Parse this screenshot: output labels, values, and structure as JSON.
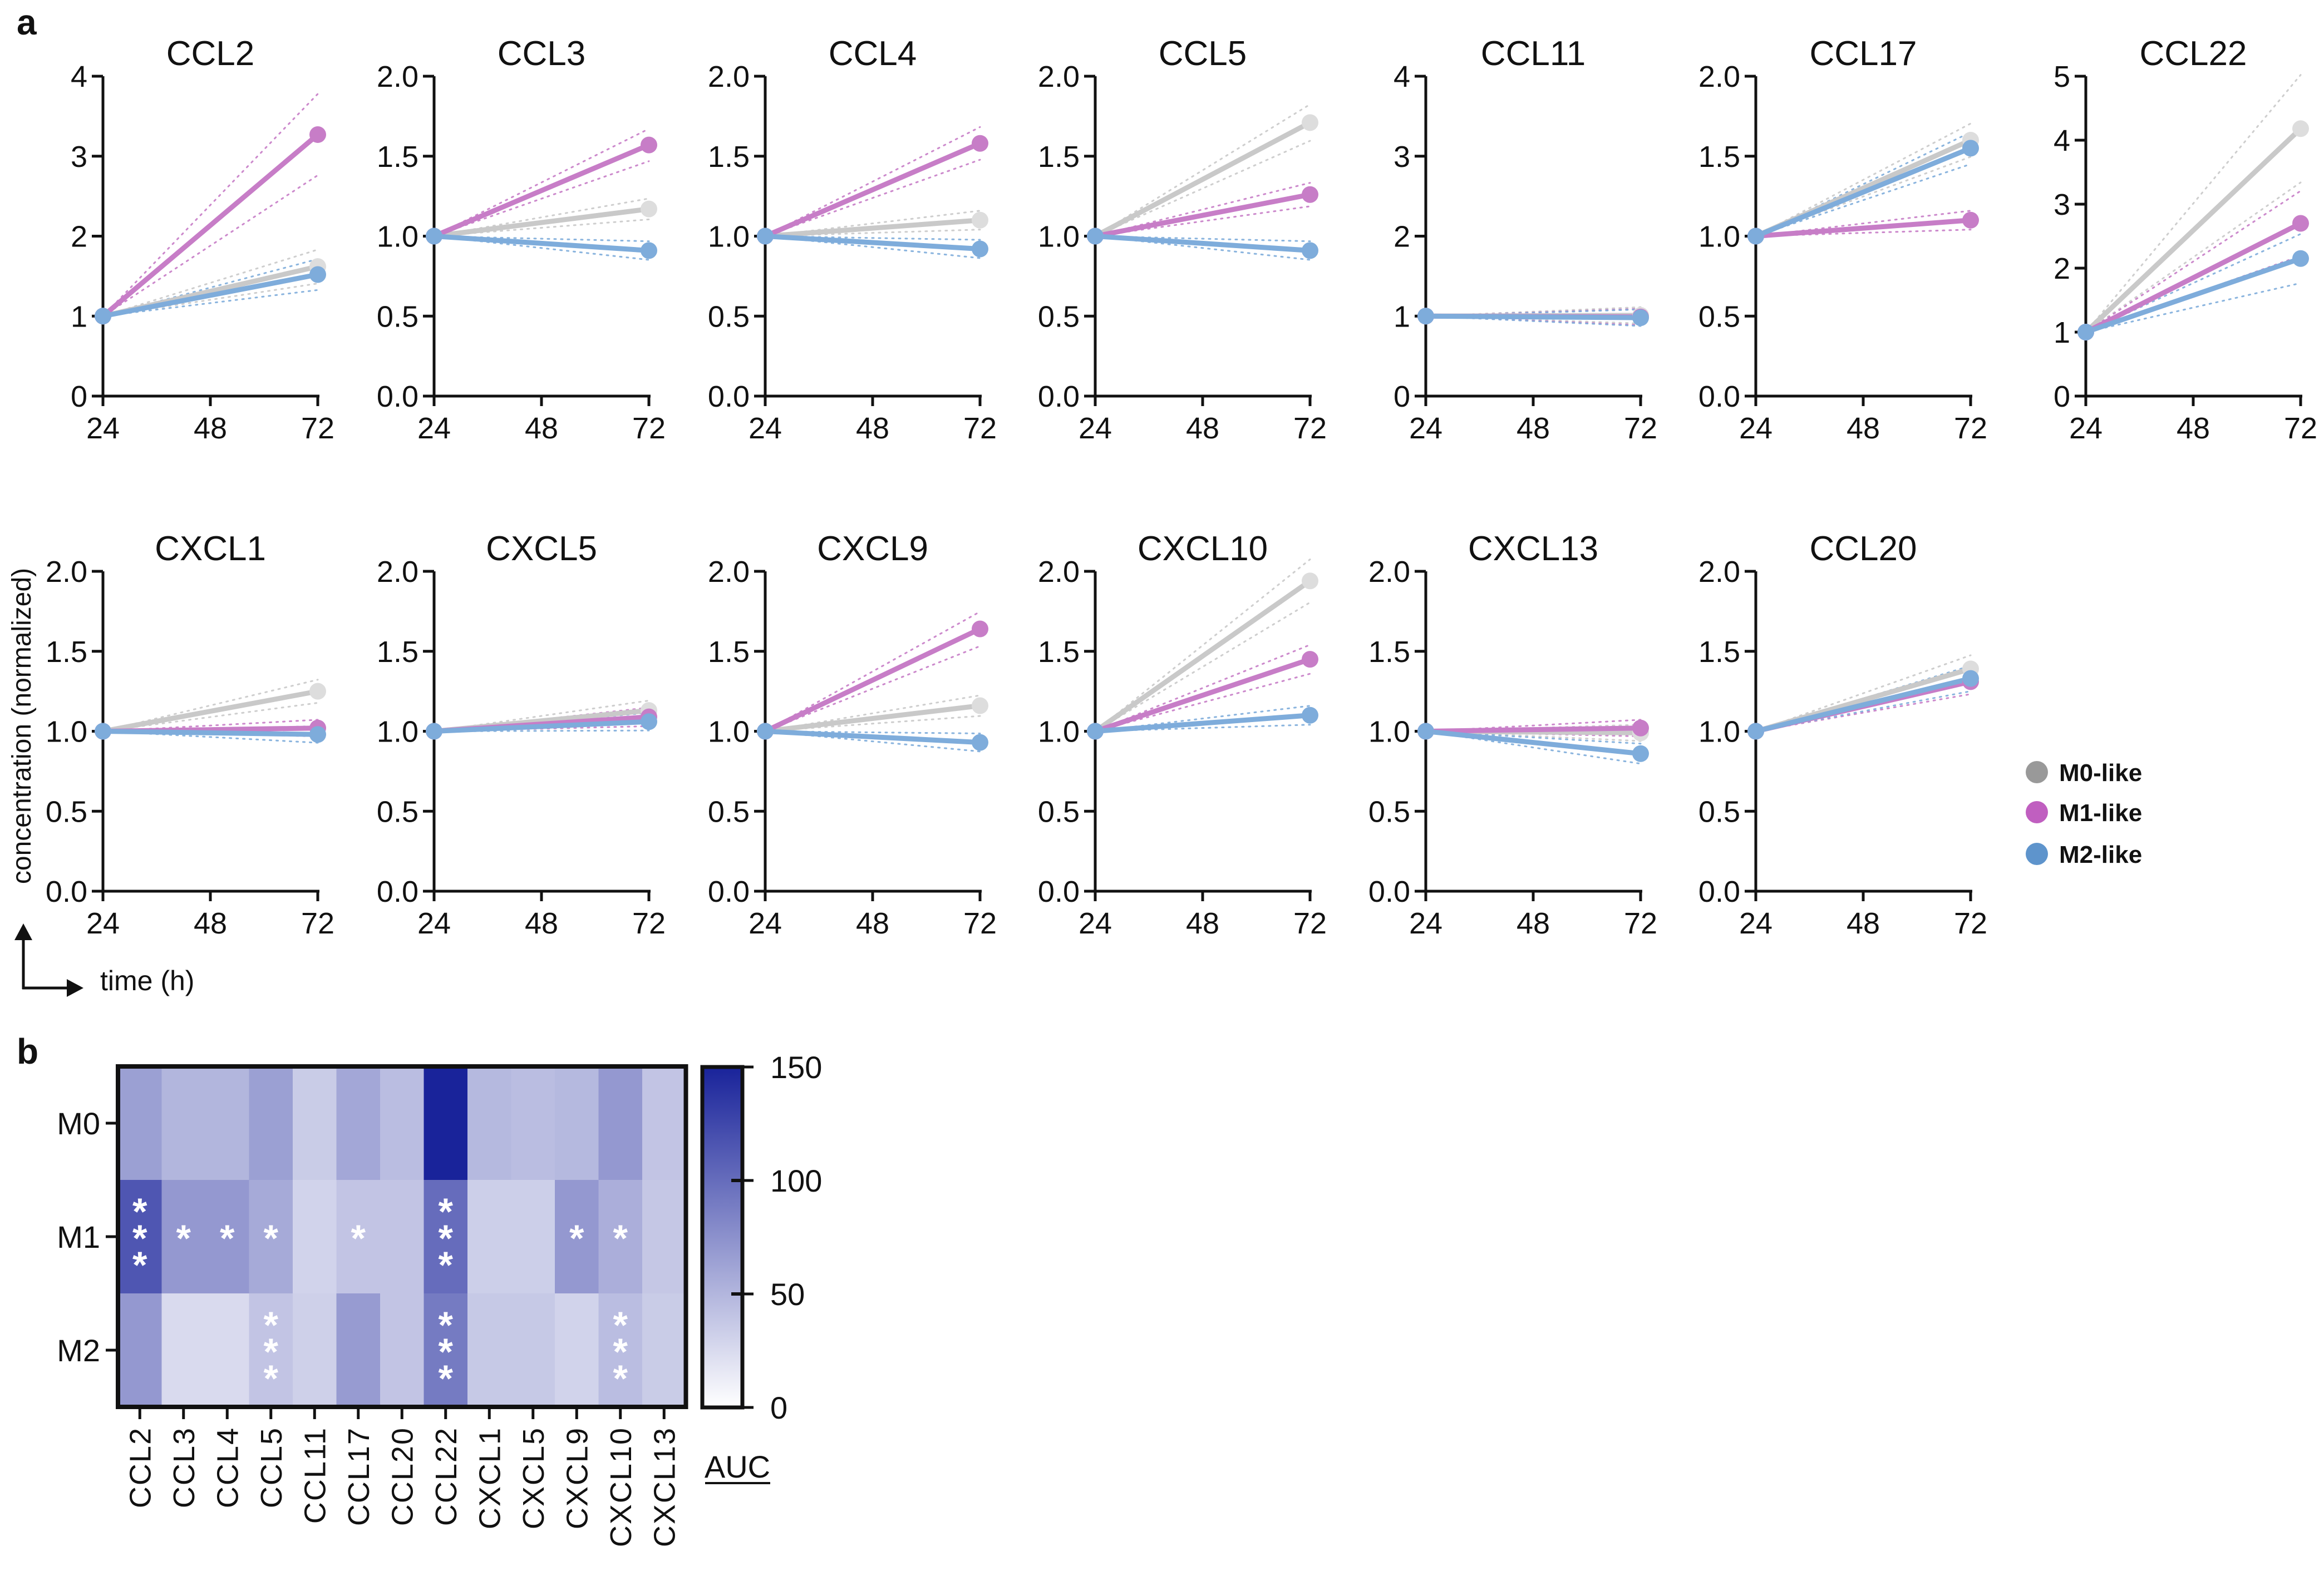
{
  "figure": {
    "panel_a_label": "a",
    "panel_b_label": "b",
    "y_axis_label": "concentration (normalized)",
    "x_axis_label": "time (h)",
    "legend": [
      {
        "label": "M0-like",
        "color": "#c9c9c9"
      },
      {
        "label": "M1-like",
        "color": "#c77dc7"
      },
      {
        "label": "M2-like",
        "color": "#7eacdb"
      }
    ]
  },
  "chart_data": [
    {
      "type": "line",
      "title": "CCL2",
      "x": [
        24,
        72
      ],
      "xticks": [
        "24",
        "48",
        "72"
      ],
      "ylim": [
        0,
        4
      ],
      "yticks": [
        "0",
        "1",
        "2",
        "3",
        "4"
      ],
      "series": [
        {
          "name": "M0-like",
          "values": [
            1,
            1.62
          ]
        },
        {
          "name": "M1-like",
          "values": [
            1,
            3.27
          ]
        },
        {
          "name": "M2-like",
          "values": [
            1,
            1.52
          ]
        }
      ]
    },
    {
      "type": "line",
      "title": "CCL3",
      "x": [
        24,
        72
      ],
      "xticks": [
        "24",
        "48",
        "72"
      ],
      "ylim": [
        0,
        2
      ],
      "yticks": [
        "0.0",
        "0.5",
        "1.0",
        "1.5",
        "2.0"
      ],
      "series": [
        {
          "name": "M0-like",
          "values": [
            1,
            1.17
          ]
        },
        {
          "name": "M1-like",
          "values": [
            1,
            1.57
          ]
        },
        {
          "name": "M2-like",
          "values": [
            1,
            0.91
          ]
        }
      ]
    },
    {
      "type": "line",
      "title": "CCL4",
      "x": [
        24,
        72
      ],
      "xticks": [
        "24",
        "48",
        "72"
      ],
      "ylim": [
        0,
        2
      ],
      "yticks": [
        "0.0",
        "0.5",
        "1.0",
        "1.5",
        "2.0"
      ],
      "series": [
        {
          "name": "M0-like",
          "values": [
            1,
            1.1
          ]
        },
        {
          "name": "M1-like",
          "values": [
            1,
            1.58
          ]
        },
        {
          "name": "M2-like",
          "values": [
            1,
            0.92
          ]
        }
      ]
    },
    {
      "type": "line",
      "title": "CCL5",
      "x": [
        24,
        72
      ],
      "xticks": [
        "24",
        "48",
        "72"
      ],
      "ylim": [
        0,
        2
      ],
      "yticks": [
        "0.0",
        "0.5",
        "1.0",
        "1.5",
        "2.0"
      ],
      "series": [
        {
          "name": "M0-like",
          "values": [
            1,
            1.71
          ]
        },
        {
          "name": "M1-like",
          "values": [
            1,
            1.26
          ]
        },
        {
          "name": "M2-like",
          "values": [
            1,
            0.91
          ]
        }
      ]
    },
    {
      "type": "line",
      "title": "CCL11",
      "x": [
        24,
        72
      ],
      "xticks": [
        "24",
        "48",
        "72"
      ],
      "ylim": [
        0,
        4
      ],
      "yticks": [
        "0",
        "1",
        "2",
        "3",
        "4"
      ],
      "series": [
        {
          "name": "M0-like",
          "values": [
            1,
            1.01
          ]
        },
        {
          "name": "M1-like",
          "values": [
            1,
            0.99
          ]
        },
        {
          "name": "M2-like",
          "values": [
            1,
            0.98
          ]
        }
      ]
    },
    {
      "type": "line",
      "title": "CCL17",
      "x": [
        24,
        72
      ],
      "xticks": [
        "24",
        "48",
        "72"
      ],
      "ylim": [
        0,
        2
      ],
      "yticks": [
        "0.0",
        "0.5",
        "1.0",
        "1.5",
        "2.0"
      ],
      "series": [
        {
          "name": "M0-like",
          "values": [
            1,
            1.6
          ]
        },
        {
          "name": "M1-like",
          "values": [
            1,
            1.1
          ]
        },
        {
          "name": "M2-like",
          "values": [
            1,
            1.55
          ]
        }
      ]
    },
    {
      "type": "line",
      "title": "CCL22",
      "x": [
        24,
        72
      ],
      "xticks": [
        "24",
        "48",
        "72"
      ],
      "ylim": [
        0,
        5
      ],
      "yticks": [
        "0",
        "1",
        "2",
        "3",
        "4",
        "5"
      ],
      "series": [
        {
          "name": "M0-like",
          "values": [
            1,
            4.18
          ]
        },
        {
          "name": "M1-like",
          "values": [
            1,
            2.7
          ]
        },
        {
          "name": "M2-like",
          "values": [
            1,
            2.15
          ]
        }
      ]
    },
    {
      "type": "line",
      "title": "CXCL1",
      "x": [
        24,
        72
      ],
      "xticks": [
        "24",
        "48",
        "72"
      ],
      "ylim": [
        0,
        2
      ],
      "yticks": [
        "0.0",
        "0.5",
        "1.0",
        "1.5",
        "2.0"
      ],
      "series": [
        {
          "name": "M0-like",
          "values": [
            1,
            1.25
          ]
        },
        {
          "name": "M1-like",
          "values": [
            1,
            1.02
          ]
        },
        {
          "name": "M2-like",
          "values": [
            1,
            0.98
          ]
        }
      ]
    },
    {
      "type": "line",
      "title": "CXCL5",
      "x": [
        24,
        72
      ],
      "xticks": [
        "24",
        "48",
        "72"
      ],
      "ylim": [
        0,
        2
      ],
      "yticks": [
        "0.0",
        "0.5",
        "1.0",
        "1.5",
        "2.0"
      ],
      "series": [
        {
          "name": "M0-like",
          "values": [
            1,
            1.13
          ]
        },
        {
          "name": "M1-like",
          "values": [
            1,
            1.09
          ]
        },
        {
          "name": "M2-like",
          "values": [
            1,
            1.06
          ]
        }
      ]
    },
    {
      "type": "line",
      "title": "CXCL9",
      "x": [
        24,
        72
      ],
      "xticks": [
        "24",
        "48",
        "72"
      ],
      "ylim": [
        0,
        2
      ],
      "yticks": [
        "0.0",
        "0.5",
        "1.0",
        "1.5",
        "2.0"
      ],
      "series": [
        {
          "name": "M0-like",
          "values": [
            1,
            1.16
          ]
        },
        {
          "name": "M1-like",
          "values": [
            1,
            1.64
          ]
        },
        {
          "name": "M2-like",
          "values": [
            1,
            0.93
          ]
        }
      ]
    },
    {
      "type": "line",
      "title": "CXCL10",
      "x": [
        24,
        72
      ],
      "xticks": [
        "24",
        "48",
        "72"
      ],
      "ylim": [
        0,
        2
      ],
      "yticks": [
        "0.0",
        "0.5",
        "1.0",
        "1.5",
        "2.0"
      ],
      "series": [
        {
          "name": "M0-like",
          "values": [
            1,
            1.94
          ]
        },
        {
          "name": "M1-like",
          "values": [
            1,
            1.45
          ]
        },
        {
          "name": "M2-like",
          "values": [
            1,
            1.1
          ]
        }
      ]
    },
    {
      "type": "line",
      "title": "CXCL13",
      "x": [
        24,
        72
      ],
      "xticks": [
        "24",
        "48",
        "72"
      ],
      "ylim": [
        0,
        2
      ],
      "yticks": [
        "0.0",
        "0.5",
        "1.0",
        "1.5",
        "2.0"
      ],
      "series": [
        {
          "name": "M0-like",
          "values": [
            1,
            0.99
          ]
        },
        {
          "name": "M1-like",
          "values": [
            1,
            1.02
          ]
        },
        {
          "name": "M2-like",
          "values": [
            1,
            0.86
          ]
        }
      ]
    },
    {
      "type": "line",
      "title": "CCL20",
      "x": [
        24,
        72
      ],
      "xticks": [
        "24",
        "48",
        "72"
      ],
      "ylim": [
        0,
        2
      ],
      "yticks": [
        "0.0",
        "0.5",
        "1.0",
        "1.5",
        "2.0"
      ],
      "series": [
        {
          "name": "M0-like",
          "values": [
            1,
            1.39
          ]
        },
        {
          "name": "M1-like",
          "values": [
            1,
            1.31
          ]
        },
        {
          "name": "M2-like",
          "values": [
            1,
            1.33
          ]
        }
      ]
    },
    {
      "type": "heatmap",
      "title": "",
      "columns": [
        "CCL2",
        "CCL3",
        "CCL4",
        "CCL5",
        "CCL11",
        "CCL17",
        "CCL20",
        "CCL22",
        "CXCL1",
        "CXCL5",
        "CXCL9",
        "CXCL10",
        "CXCL13"
      ],
      "rows": [
        "M0",
        "M1",
        "M2"
      ],
      "values": [
        [
          65,
          50,
          50,
          65,
          35,
          60,
          45,
          150,
          48,
          45,
          48,
          70,
          40
        ],
        [
          115,
          70,
          70,
          58,
          30,
          40,
          40,
          100,
          33,
          33,
          70,
          55,
          38
        ],
        [
          70,
          25,
          25,
          40,
          32,
          68,
          40,
          90,
          37,
          37,
          30,
          45,
          35
        ]
      ],
      "significance": [
        [
          "",
          "",
          "",
          "",
          "",
          "",
          "",
          "",
          "",
          "",
          "",
          "",
          ""
        ],
        [
          "***",
          "*",
          "*",
          "*",
          "",
          "*",
          "",
          "***",
          "",
          "",
          "*",
          "*",
          ""
        ],
        [
          "",
          "",
          "",
          "***",
          "",
          "",
          "",
          "***",
          "",
          "",
          "",
          "***",
          ""
        ]
      ],
      "colorbar": {
        "label": "AUC",
        "range": [
          0,
          150
        ],
        "ticks": [
          "0",
          "50",
          "100",
          "150"
        ],
        "low_color": "#ffffff",
        "high_color": "#19239a"
      }
    }
  ]
}
